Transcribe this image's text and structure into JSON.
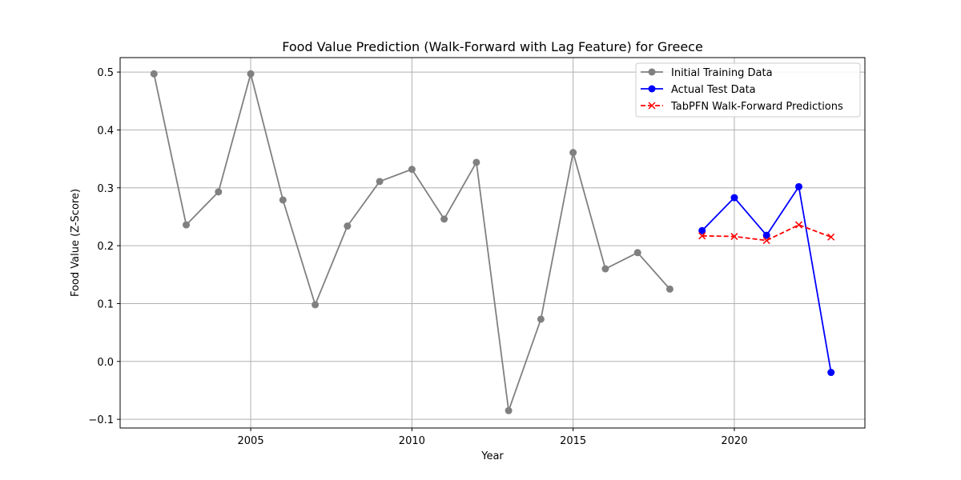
{
  "chart_data": {
    "type": "line",
    "title": "Food Value Prediction (Walk-Forward with Lag Feature) for Greece",
    "xlabel": "Year",
    "ylabel": "Food Value (Z-Score)",
    "xlim": [
      2000.95,
      2024.05
    ],
    "ylim": [
      -0.115,
      0.525
    ],
    "xticks": [
      2005,
      2010,
      2015,
      2020
    ],
    "xtick_labels": [
      "2005",
      "2010",
      "2015",
      "2020"
    ],
    "yticks": [
      -0.1,
      0.0,
      0.1,
      0.2,
      0.3,
      0.4,
      0.5
    ],
    "ytick_labels": [
      "−0.1",
      "0.0",
      "0.1",
      "0.2",
      "0.3",
      "0.4",
      "0.5"
    ],
    "grid": true,
    "legend_position": "top-right",
    "series": [
      {
        "name": "Initial Training Data",
        "color": "#808080",
        "marker": "circle",
        "line_style": "solid",
        "x": [
          2002,
          2003,
          2004,
          2005,
          2006,
          2007,
          2008,
          2009,
          2010,
          2011,
          2012,
          2013,
          2014,
          2015,
          2016,
          2017,
          2018
        ],
        "y": [
          0.497,
          0.236,
          0.293,
          0.497,
          0.279,
          0.098,
          0.234,
          0.311,
          0.332,
          0.246,
          0.344,
          -0.085,
          0.073,
          0.361,
          0.16,
          0.188,
          0.125
        ]
      },
      {
        "name": "Actual Test Data",
        "color": "#0000ff",
        "marker": "circle",
        "line_style": "solid",
        "x": [
          2019,
          2020,
          2021,
          2022,
          2023
        ],
        "y": [
          0.226,
          0.283,
          0.218,
          0.302,
          -0.019
        ]
      },
      {
        "name": "TabPFN Walk-Forward Predictions",
        "color": "#ff0000",
        "marker": "x",
        "line_style": "dashed",
        "x": [
          2019,
          2020,
          2021,
          2022,
          2023
        ],
        "y": [
          0.217,
          0.216,
          0.209,
          0.236,
          0.215
        ]
      }
    ]
  }
}
